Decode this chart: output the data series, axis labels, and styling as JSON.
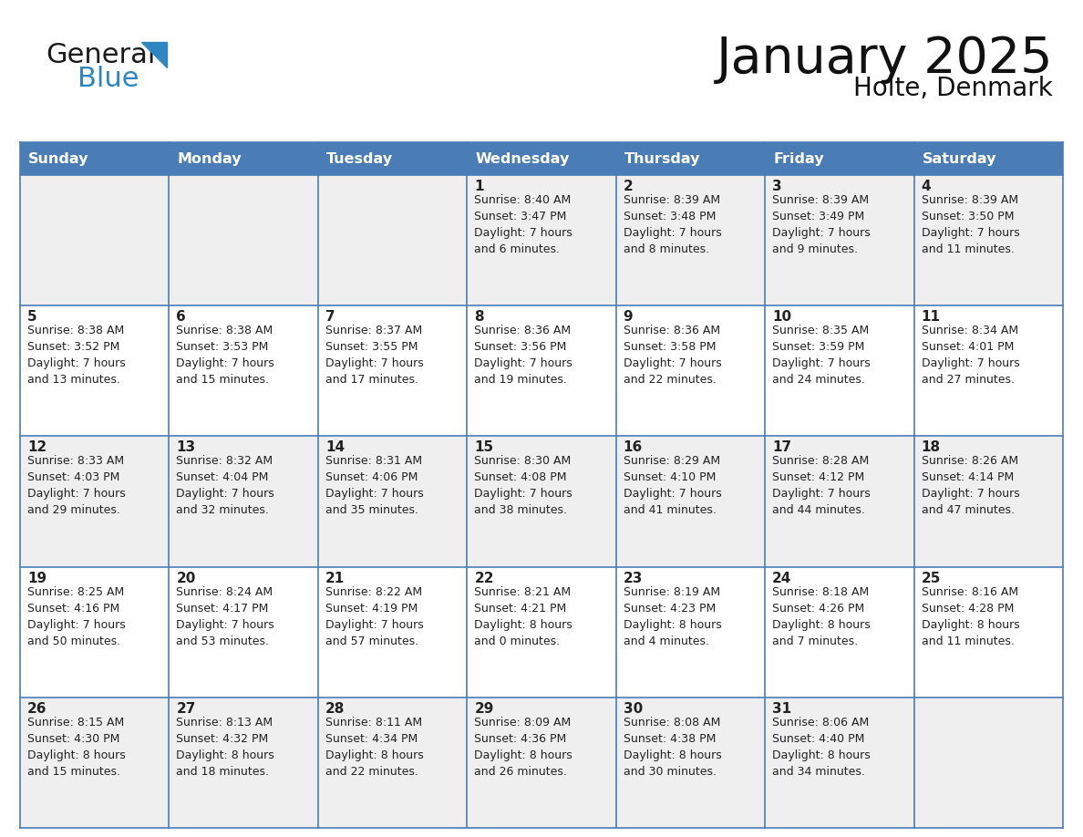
{
  "title": "January 2025",
  "subtitle": "Holte, Denmark",
  "header_color": "#4a7db5",
  "header_text_color": "#FFFFFF",
  "background_color": "#FFFFFF",
  "row_colors": [
    "#EFEFEF",
    "#FFFFFF",
    "#EFEFEF",
    "#FFFFFF",
    "#EFEFEF"
  ],
  "border_color": "#4a7db5",
  "day_names": [
    "Sunday",
    "Monday",
    "Tuesday",
    "Wednesday",
    "Thursday",
    "Friday",
    "Saturday"
  ],
  "cell_text_color": "#222222",
  "day_num_color": "#222222",
  "logo_general_color": "#1a1a1a",
  "logo_blue_color": "#2E86C1",
  "logo_triangle_color": "#2E86C1",
  "calendar": [
    [
      {
        "day": 0,
        "text": ""
      },
      {
        "day": 0,
        "text": ""
      },
      {
        "day": 0,
        "text": ""
      },
      {
        "day": 1,
        "text": "Sunrise: 8:40 AM\nSunset: 3:47 PM\nDaylight: 7 hours\nand 6 minutes."
      },
      {
        "day": 2,
        "text": "Sunrise: 8:39 AM\nSunset: 3:48 PM\nDaylight: 7 hours\nand 8 minutes."
      },
      {
        "day": 3,
        "text": "Sunrise: 8:39 AM\nSunset: 3:49 PM\nDaylight: 7 hours\nand 9 minutes."
      },
      {
        "day": 4,
        "text": "Sunrise: 8:39 AM\nSunset: 3:50 PM\nDaylight: 7 hours\nand 11 minutes."
      }
    ],
    [
      {
        "day": 5,
        "text": "Sunrise: 8:38 AM\nSunset: 3:52 PM\nDaylight: 7 hours\nand 13 minutes."
      },
      {
        "day": 6,
        "text": "Sunrise: 8:38 AM\nSunset: 3:53 PM\nDaylight: 7 hours\nand 15 minutes."
      },
      {
        "day": 7,
        "text": "Sunrise: 8:37 AM\nSunset: 3:55 PM\nDaylight: 7 hours\nand 17 minutes."
      },
      {
        "day": 8,
        "text": "Sunrise: 8:36 AM\nSunset: 3:56 PM\nDaylight: 7 hours\nand 19 minutes."
      },
      {
        "day": 9,
        "text": "Sunrise: 8:36 AM\nSunset: 3:58 PM\nDaylight: 7 hours\nand 22 minutes."
      },
      {
        "day": 10,
        "text": "Sunrise: 8:35 AM\nSunset: 3:59 PM\nDaylight: 7 hours\nand 24 minutes."
      },
      {
        "day": 11,
        "text": "Sunrise: 8:34 AM\nSunset: 4:01 PM\nDaylight: 7 hours\nand 27 minutes."
      }
    ],
    [
      {
        "day": 12,
        "text": "Sunrise: 8:33 AM\nSunset: 4:03 PM\nDaylight: 7 hours\nand 29 minutes."
      },
      {
        "day": 13,
        "text": "Sunrise: 8:32 AM\nSunset: 4:04 PM\nDaylight: 7 hours\nand 32 minutes."
      },
      {
        "day": 14,
        "text": "Sunrise: 8:31 AM\nSunset: 4:06 PM\nDaylight: 7 hours\nand 35 minutes."
      },
      {
        "day": 15,
        "text": "Sunrise: 8:30 AM\nSunset: 4:08 PM\nDaylight: 7 hours\nand 38 minutes."
      },
      {
        "day": 16,
        "text": "Sunrise: 8:29 AM\nSunset: 4:10 PM\nDaylight: 7 hours\nand 41 minutes."
      },
      {
        "day": 17,
        "text": "Sunrise: 8:28 AM\nSunset: 4:12 PM\nDaylight: 7 hours\nand 44 minutes."
      },
      {
        "day": 18,
        "text": "Sunrise: 8:26 AM\nSunset: 4:14 PM\nDaylight: 7 hours\nand 47 minutes."
      }
    ],
    [
      {
        "day": 19,
        "text": "Sunrise: 8:25 AM\nSunset: 4:16 PM\nDaylight: 7 hours\nand 50 minutes."
      },
      {
        "day": 20,
        "text": "Sunrise: 8:24 AM\nSunset: 4:17 PM\nDaylight: 7 hours\nand 53 minutes."
      },
      {
        "day": 21,
        "text": "Sunrise: 8:22 AM\nSunset: 4:19 PM\nDaylight: 7 hours\nand 57 minutes."
      },
      {
        "day": 22,
        "text": "Sunrise: 8:21 AM\nSunset: 4:21 PM\nDaylight: 8 hours\nand 0 minutes."
      },
      {
        "day": 23,
        "text": "Sunrise: 8:19 AM\nSunset: 4:23 PM\nDaylight: 8 hours\nand 4 minutes."
      },
      {
        "day": 24,
        "text": "Sunrise: 8:18 AM\nSunset: 4:26 PM\nDaylight: 8 hours\nand 7 minutes."
      },
      {
        "day": 25,
        "text": "Sunrise: 8:16 AM\nSunset: 4:28 PM\nDaylight: 8 hours\nand 11 minutes."
      }
    ],
    [
      {
        "day": 26,
        "text": "Sunrise: 8:15 AM\nSunset: 4:30 PM\nDaylight: 8 hours\nand 15 minutes."
      },
      {
        "day": 27,
        "text": "Sunrise: 8:13 AM\nSunset: 4:32 PM\nDaylight: 8 hours\nand 18 minutes."
      },
      {
        "day": 28,
        "text": "Sunrise: 8:11 AM\nSunset: 4:34 PM\nDaylight: 8 hours\nand 22 minutes."
      },
      {
        "day": 29,
        "text": "Sunrise: 8:09 AM\nSunset: 4:36 PM\nDaylight: 8 hours\nand 26 minutes."
      },
      {
        "day": 30,
        "text": "Sunrise: 8:08 AM\nSunset: 4:38 PM\nDaylight: 8 hours\nand 30 minutes."
      },
      {
        "day": 31,
        "text": "Sunrise: 8:06 AM\nSunset: 4:40 PM\nDaylight: 8 hours\nand 34 minutes."
      },
      {
        "day": 0,
        "text": ""
      }
    ]
  ]
}
